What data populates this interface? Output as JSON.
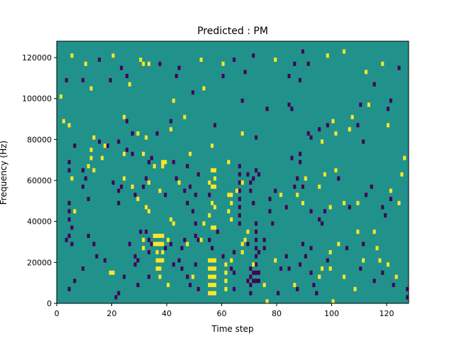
{
  "chart_data": {
    "type": "heatmap",
    "title": "Predicted : PM",
    "xlabel": "Time step",
    "ylabel": "Frequency (Hz)",
    "xlim": [
      0,
      128
    ],
    "ylim": [
      0,
      128000
    ],
    "xticks": [
      0,
      20,
      40,
      60,
      80,
      100,
      120
    ],
    "yticks": [
      0,
      20000,
      40000,
      60000,
      80000,
      100000,
      120000
    ],
    "ytick_labels": [
      "0",
      "20000",
      "40000",
      "60000",
      "80000",
      "100000",
      "120000"
    ],
    "bin_width_hz": 2000,
    "colors": {
      "background": "#21918c",
      "high": "#fde725",
      "low": "#440154"
    },
    "high_cells": [
      [
        5,
        120000
      ],
      [
        10,
        116000
      ],
      [
        20,
        120000
      ],
      [
        30,
        118000
      ],
      [
        31,
        116000
      ],
      [
        33,
        116000
      ],
      [
        52,
        118000
      ],
      [
        60,
        116000
      ],
      [
        79,
        118000
      ],
      [
        98,
        120000
      ],
      [
        104,
        122000
      ],
      [
        112,
        112000
      ],
      [
        118,
        116000
      ],
      [
        1,
        100000
      ],
      [
        12,
        104000
      ],
      [
        26,
        106000
      ],
      [
        53,
        104000
      ],
      [
        42,
        98000
      ],
      [
        2,
        88000
      ],
      [
        24,
        90000
      ],
      [
        46,
        90000
      ],
      [
        100,
        88000
      ],
      [
        107,
        90000
      ],
      [
        113,
        96000
      ],
      [
        120,
        86000
      ],
      [
        4,
        86000
      ],
      [
        13,
        80000
      ],
      [
        17,
        76000
      ],
      [
        29,
        82000
      ],
      [
        32,
        80000
      ],
      [
        41,
        84000
      ],
      [
        56,
        76000
      ],
      [
        67,
        82000
      ],
      [
        96,
        78000
      ],
      [
        101,
        82000
      ],
      [
        106,
        84000
      ],
      [
        12,
        74000
      ],
      [
        12,
        70000
      ],
      [
        11,
        66000
      ],
      [
        16,
        70000
      ],
      [
        24,
        72000
      ],
      [
        31,
        72000
      ],
      [
        38,
        68000
      ],
      [
        39,
        68000
      ],
      [
        48,
        72000
      ],
      [
        62,
        68000
      ],
      [
        5,
        60000
      ],
      [
        13,
        64000
      ],
      [
        24,
        60000
      ],
      [
        35,
        66000
      ],
      [
        38,
        66000
      ],
      [
        56,
        64000
      ],
      [
        57,
        64000
      ],
      [
        57,
        60000
      ],
      [
        62,
        52000
      ],
      [
        63,
        52000
      ],
      [
        63,
        48000
      ],
      [
        62,
        44000
      ],
      [
        63,
        40000
      ],
      [
        29,
        50000
      ],
      [
        37,
        54000
      ],
      [
        55,
        42000
      ],
      [
        56,
        48000
      ],
      [
        57,
        46000
      ],
      [
        81,
        52000
      ],
      [
        87,
        52000
      ],
      [
        89,
        48000
      ],
      [
        97,
        62000
      ],
      [
        101,
        64000
      ],
      [
        99,
        46000
      ],
      [
        104,
        48000
      ],
      [
        109,
        48000
      ],
      [
        121,
        54000
      ],
      [
        124,
        48000
      ],
      [
        125,
        62000
      ],
      [
        126,
        70000
      ],
      [
        6,
        44000
      ],
      [
        32,
        46000
      ],
      [
        33,
        44000
      ],
      [
        41,
        40000
      ],
      [
        42,
        38000
      ],
      [
        53,
        38000
      ],
      [
        56,
        36000
      ],
      [
        57,
        36000
      ],
      [
        35,
        32000
      ],
      [
        36,
        32000
      ],
      [
        37,
        32000
      ],
      [
        38,
        32000
      ],
      [
        35,
        28000
      ],
      [
        36,
        28000
      ],
      [
        37,
        28000
      ],
      [
        38,
        28000
      ],
      [
        36,
        24000
      ],
      [
        36,
        20000
      ],
      [
        37,
        20000
      ],
      [
        38,
        20000
      ],
      [
        36,
        16000
      ],
      [
        37,
        16000
      ],
      [
        31,
        30000
      ],
      [
        31,
        26000
      ],
      [
        38,
        24000
      ],
      [
        40,
        30000
      ],
      [
        47,
        28000
      ],
      [
        52,
        30000
      ],
      [
        55,
        20000
      ],
      [
        56,
        20000
      ],
      [
        57,
        20000
      ],
      [
        55,
        16000
      ],
      [
        56,
        16000
      ],
      [
        57,
        16000
      ],
      [
        55,
        12000
      ],
      [
        56,
        12000
      ],
      [
        57,
        12000
      ],
      [
        55,
        8000
      ],
      [
        56,
        8000
      ],
      [
        57,
        8000
      ],
      [
        55,
        4000
      ],
      [
        56,
        4000
      ],
      [
        57,
        4000
      ],
      [
        61,
        18000
      ],
      [
        61,
        14000
      ],
      [
        61,
        10000
      ],
      [
        61,
        6000
      ],
      [
        63,
        20000
      ],
      [
        67,
        24000
      ],
      [
        67,
        28000
      ],
      [
        68,
        30000
      ],
      [
        69,
        34000
      ],
      [
        71,
        18000
      ],
      [
        75,
        8000
      ],
      [
        76,
        0
      ],
      [
        79,
        20000
      ],
      [
        86,
        8000
      ],
      [
        99,
        24000
      ],
      [
        100,
        0
      ],
      [
        102,
        28000
      ],
      [
        116,
        26000
      ],
      [
        117,
        20000
      ],
      [
        115,
        34000
      ],
      [
        109,
        34000
      ],
      [
        37,
        12000
      ],
      [
        40,
        8000
      ],
      [
        49,
        12000
      ],
      [
        19,
        14000
      ],
      [
        20,
        14000
      ],
      [
        95,
        12000
      ],
      [
        96,
        16000
      ],
      [
        99,
        16000
      ],
      [
        104,
        12000
      ],
      [
        108,
        6000
      ],
      [
        111,
        20000
      ],
      [
        120,
        18000
      ],
      [
        123,
        12000
      ],
      [
        27,
        56000
      ],
      [
        33,
        58000
      ],
      [
        44,
        58000
      ],
      [
        55,
        58000
      ],
      [
        56,
        56000
      ],
      [
        57,
        56000
      ],
      [
        65,
        54000
      ],
      [
        67,
        58000
      ],
      [
        90,
        60000
      ],
      [
        95,
        56000
      ]
    ],
    "low_cells": [
      [
        3,
        108000
      ],
      [
        9,
        108000
      ],
      [
        15,
        118000
      ],
      [
        23,
        114000
      ],
      [
        25,
        110000
      ],
      [
        37,
        116000
      ],
      [
        43,
        110000
      ],
      [
        44,
        114000
      ],
      [
        60,
        110000
      ],
      [
        64,
        118000
      ],
      [
        68,
        112000
      ],
      [
        71,
        120000
      ],
      [
        84,
        110000
      ],
      [
        86,
        116000
      ],
      [
        89,
        122000
      ],
      [
        91,
        116000
      ],
      [
        88,
        108000
      ],
      [
        124,
        114000
      ],
      [
        115,
        106000
      ],
      [
        121,
        98000
      ],
      [
        19,
        108000
      ],
      [
        49,
        102000
      ],
      [
        67,
        98000
      ],
      [
        76,
        94000
      ],
      [
        84,
        96000
      ],
      [
        85,
        94000
      ],
      [
        110,
        96000
      ],
      [
        120,
        94000
      ],
      [
        25,
        88000
      ],
      [
        41,
        88000
      ],
      [
        36,
        82000
      ],
      [
        57,
        86000
      ],
      [
        72,
        80000
      ],
      [
        91,
        82000
      ],
      [
        92,
        80000
      ],
      [
        95,
        84000
      ],
      [
        98,
        86000
      ],
      [
        109,
        86000
      ],
      [
        111,
        78000
      ],
      [
        6,
        76000
      ],
      [
        15,
        78000
      ],
      [
        18,
        76000
      ],
      [
        22,
        78000
      ],
      [
        27,
        82000
      ],
      [
        25,
        74000
      ],
      [
        27,
        72000
      ],
      [
        33,
        68000
      ],
      [
        34,
        70000
      ],
      [
        42,
        68000
      ],
      [
        47,
        66000
      ],
      [
        4,
        68000
      ],
      [
        4,
        64000
      ],
      [
        9,
        64000
      ],
      [
        9,
        56000
      ],
      [
        10,
        60000
      ],
      [
        20,
        58000
      ],
      [
        23,
        56000
      ],
      [
        22,
        54000
      ],
      [
        31,
        56000
      ],
      [
        32,
        60000
      ],
      [
        43,
        60000
      ],
      [
        46,
        54000
      ],
      [
        48,
        56000
      ],
      [
        50,
        52000
      ],
      [
        51,
        62000
      ],
      [
        55,
        52000
      ],
      [
        66,
        66000
      ],
      [
        66,
        62000
      ],
      [
        66,
        58000
      ],
      [
        66,
        54000
      ],
      [
        66,
        50000
      ],
      [
        66,
        46000
      ],
      [
        66,
        42000
      ],
      [
        66,
        38000
      ],
      [
        69,
        62000
      ],
      [
        70,
        54000
      ],
      [
        71,
        48000
      ],
      [
        72,
        64000
      ],
      [
        73,
        62000
      ],
      [
        71,
        60000
      ],
      [
        70,
        58000
      ],
      [
        72,
        38000
      ],
      [
        72,
        34000
      ],
      [
        72,
        30000
      ],
      [
        72,
        26000
      ],
      [
        72,
        22000
      ],
      [
        72,
        18000
      ],
      [
        72,
        14000
      ],
      [
        72,
        10000
      ],
      [
        70,
        16000
      ],
      [
        70,
        12000
      ],
      [
        70,
        8000
      ],
      [
        71,
        14000
      ],
      [
        71,
        10000
      ],
      [
        73,
        14000
      ],
      [
        73,
        10000
      ],
      [
        77,
        50000
      ],
      [
        77,
        44000
      ],
      [
        79,
        54000
      ],
      [
        78,
        38000
      ],
      [
        75,
        30000
      ],
      [
        75,
        26000
      ],
      [
        83,
        46000
      ],
      [
        86,
        56000
      ],
      [
        85,
        70000
      ],
      [
        87,
        60000
      ],
      [
        88,
        68000
      ],
      [
        88,
        72000
      ],
      [
        89,
        56000
      ],
      [
        92,
        44000
      ],
      [
        95,
        40000
      ],
      [
        96,
        38000
      ],
      [
        97,
        44000
      ],
      [
        102,
        60000
      ],
      [
        106,
        46000
      ],
      [
        112,
        52000
      ],
      [
        114,
        56000
      ],
      [
        118,
        46000
      ],
      [
        119,
        42000
      ],
      [
        121,
        50000
      ],
      [
        4,
        48000
      ],
      [
        4,
        44000
      ],
      [
        4,
        40000
      ],
      [
        5,
        36000
      ],
      [
        4,
        32000
      ],
      [
        5,
        28000
      ],
      [
        3,
        30000
      ],
      [
        11,
        32000
      ],
      [
        11,
        50000
      ],
      [
        13,
        28000
      ],
      [
        22,
        48000
      ],
      [
        28,
        52000
      ],
      [
        39,
        52000
      ],
      [
        47,
        48000
      ],
      [
        49,
        44000
      ],
      [
        50,
        38000
      ],
      [
        51,
        30000
      ],
      [
        55,
        30000
      ],
      [
        56,
        26000
      ],
      [
        58,
        34000
      ],
      [
        30,
        34000
      ],
      [
        32,
        34000
      ],
      [
        33,
        30000
      ],
      [
        33,
        24000
      ],
      [
        34,
        28000
      ],
      [
        39,
        26000
      ],
      [
        41,
        28000
      ],
      [
        45,
        26000
      ],
      [
        46,
        30000
      ],
      [
        50,
        32000
      ],
      [
        26,
        28000
      ],
      [
        28,
        22000
      ],
      [
        29,
        20000
      ],
      [
        33,
        12000
      ],
      [
        45,
        16000
      ],
      [
        47,
        12000
      ],
      [
        48,
        8000
      ],
      [
        50,
        18000
      ],
      [
        51,
        6000
      ],
      [
        60,
        22000
      ],
      [
        63,
        16000
      ],
      [
        64,
        24000
      ],
      [
        64,
        14000
      ],
      [
        64,
        6000
      ],
      [
        69,
        28000
      ],
      [
        69,
        10000
      ],
      [
        70,
        4000
      ],
      [
        73,
        24000
      ],
      [
        80,
        4000
      ],
      [
        81,
        16000
      ],
      [
        83,
        22000
      ],
      [
        84,
        16000
      ],
      [
        87,
        6000
      ],
      [
        88,
        18000
      ],
      [
        89,
        28000
      ],
      [
        90,
        22000
      ],
      [
        92,
        26000
      ],
      [
        92,
        14000
      ],
      [
        93,
        8000
      ],
      [
        94,
        4000
      ],
      [
        98,
        20000
      ],
      [
        105,
        26000
      ],
      [
        110,
        16000
      ],
      [
        111,
        28000
      ],
      [
        115,
        10000
      ],
      [
        118,
        14000
      ],
      [
        122,
        8000
      ],
      [
        127,
        6000
      ],
      [
        127,
        2000
      ],
      [
        6,
        10000
      ],
      [
        4,
        6000
      ],
      [
        9,
        16000
      ],
      [
        14,
        22000
      ],
      [
        17,
        20000
      ],
      [
        21,
        2000
      ],
      [
        22,
        4000
      ],
      [
        24,
        12000
      ],
      [
        29,
        8000
      ],
      [
        28,
        18000
      ],
      [
        42,
        18000
      ],
      [
        44,
        20000
      ]
    ]
  }
}
